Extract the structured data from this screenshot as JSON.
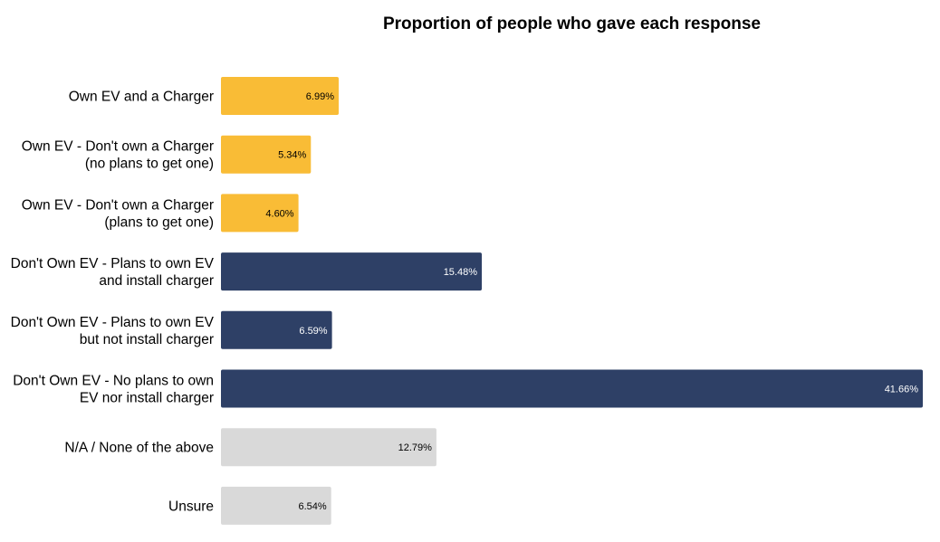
{
  "chart_data": {
    "type": "bar",
    "orientation": "horizontal",
    "title": "Proportion of people who gave each response",
    "xlabel": "",
    "ylabel": "",
    "grid": false,
    "legend": "none",
    "xlim": [
      0,
      41.66
    ],
    "categories": [
      [
        "Own EV and a Charger"
      ],
      [
        "Own EV - Don't own a Charger",
        "(no plans to get one)"
      ],
      [
        "Own EV - Don't own a Charger",
        "(plans to get one)"
      ],
      [
        "Don't Own EV - Plans to own EV",
        "and install charger"
      ],
      [
        "Don't Own EV - Plans to own EV",
        "but not install charger"
      ],
      [
        "Don't Own EV - No plans to own",
        "EV nor install charger"
      ],
      [
        "N/A / None of the above"
      ],
      [
        "Unsure"
      ]
    ],
    "values": [
      6.99,
      5.34,
      4.6,
      15.48,
      6.59,
      41.66,
      12.79,
      6.54
    ],
    "value_labels": [
      "6.99%",
      "5.34%",
      "4.60%",
      "15.48%",
      "6.59%",
      "41.66%",
      "12.79%",
      "6.54%"
    ],
    "colors": [
      "#F9BC36",
      "#F9BC36",
      "#F9BC36",
      "#2E4066",
      "#2E4066",
      "#2E4066",
      "#D9D9D9",
      "#D9D9D9"
    ],
    "label_colors": [
      "#000000",
      "#000000",
      "#000000",
      "#ffffff",
      "#ffffff",
      "#ffffff",
      "#000000",
      "#000000"
    ]
  }
}
